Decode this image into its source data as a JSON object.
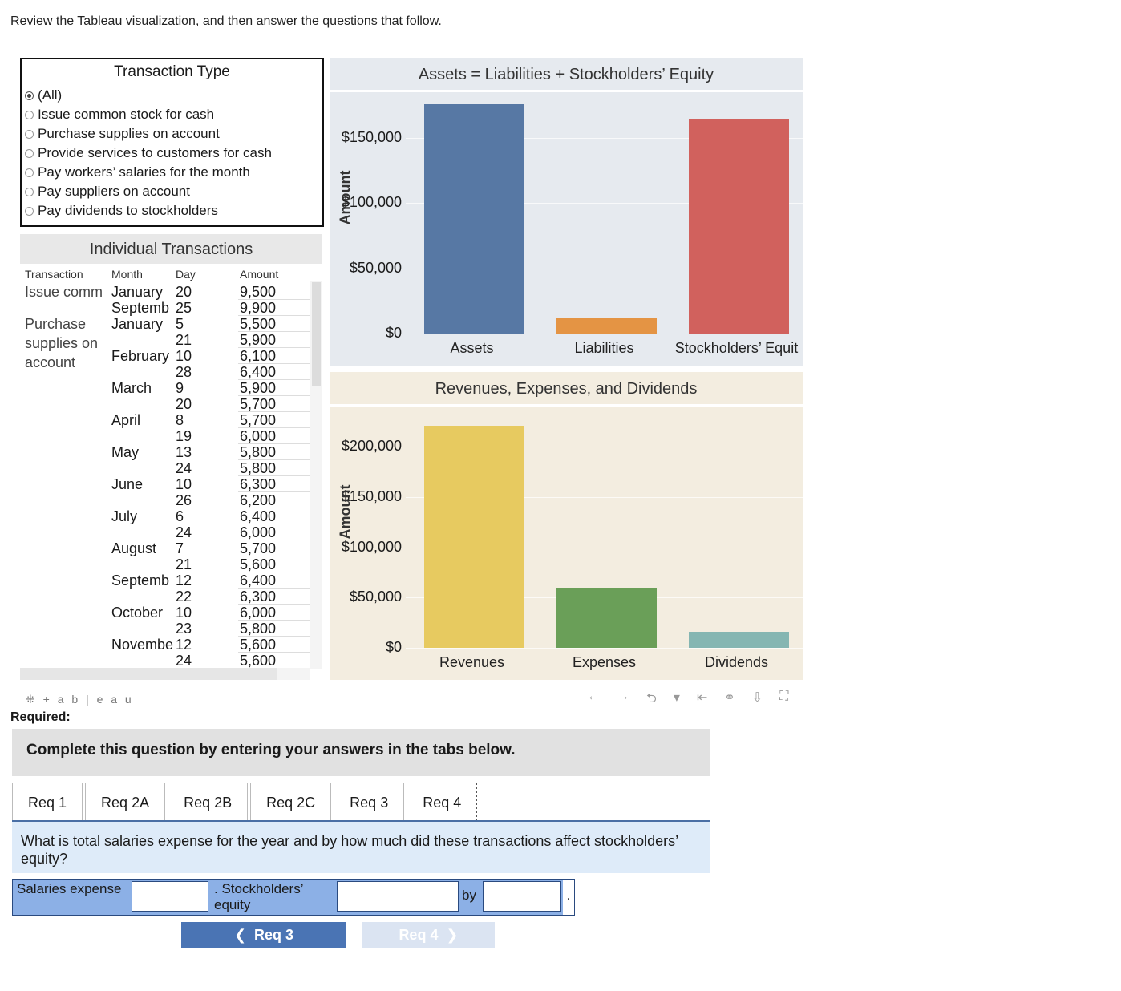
{
  "intro": "Review the Tableau visualization, and then answer the questions that follow.",
  "filter": {
    "title": "Transaction Type",
    "options": [
      {
        "label": "(All)",
        "selected": true
      },
      {
        "label": "Issue common stock for cash",
        "selected": false
      },
      {
        "label": "Purchase supplies on account",
        "selected": false
      },
      {
        "label": "Provide services to customers for cash",
        "selected": false
      },
      {
        "label": "Pay workers’ salaries for the month",
        "selected": false
      },
      {
        "label": "Pay suppliers on account",
        "selected": false
      },
      {
        "label": "Pay dividends to stockholders",
        "selected": false
      }
    ]
  },
  "transactions": {
    "title": "Individual Transactions",
    "columns": [
      "Transaction",
      "Month",
      "Day",
      "Amount"
    ],
    "group_labels": [
      {
        "text": "Issue comm",
        "row": 0
      },
      {
        "text": "Purchase",
        "row": 2
      },
      {
        "text": "supplies on",
        "row": 3.2
      },
      {
        "text": "account",
        "row": 4.4
      }
    ],
    "month_labels": [
      {
        "text": "January",
        "row": 0
      },
      {
        "text": "Septemb",
        "row": 1
      },
      {
        "text": "January",
        "row": 2
      },
      {
        "text": "February",
        "row": 4
      },
      {
        "text": "March",
        "row": 6
      },
      {
        "text": "April",
        "row": 8
      },
      {
        "text": "May",
        "row": 10
      },
      {
        "text": "June",
        "row": 12
      },
      {
        "text": "July",
        "row": 14
      },
      {
        "text": "August",
        "row": 16
      },
      {
        "text": "Septemb",
        "row": 18
      },
      {
        "text": "October",
        "row": 20
      },
      {
        "text": "Novembe",
        "row": 22
      }
    ],
    "rows": [
      {
        "day": "20",
        "amount": "9,500"
      },
      {
        "day": "25",
        "amount": "9,900"
      },
      {
        "day": "5",
        "amount": "5,500"
      },
      {
        "day": "21",
        "amount": "5,900"
      },
      {
        "day": "10",
        "amount": "6,100"
      },
      {
        "day": "28",
        "amount": "6,400"
      },
      {
        "day": "9",
        "amount": "5,900"
      },
      {
        "day": "20",
        "amount": "5,700"
      },
      {
        "day": "8",
        "amount": "5,700"
      },
      {
        "day": "19",
        "amount": "6,000"
      },
      {
        "day": "13",
        "amount": "5,800"
      },
      {
        "day": "24",
        "amount": "5,800"
      },
      {
        "day": "10",
        "amount": "6,300"
      },
      {
        "day": "26",
        "amount": "6,200"
      },
      {
        "day": "6",
        "amount": "6,400"
      },
      {
        "day": "24",
        "amount": "6,000"
      },
      {
        "day": "7",
        "amount": "5,700"
      },
      {
        "day": "21",
        "amount": "5,600"
      },
      {
        "day": "12",
        "amount": "6,400"
      },
      {
        "day": "22",
        "amount": "6,300"
      },
      {
        "day": "10",
        "amount": "6,000"
      },
      {
        "day": "23",
        "amount": "5,800"
      },
      {
        "day": "12",
        "amount": "5,600"
      },
      {
        "day": "24",
        "amount": "5,600"
      }
    ]
  },
  "chart_data": [
    {
      "type": "bar",
      "title": "Assets = Liabilities + Stockholders’ Equity",
      "ylabel": "Amount",
      "categories": [
        "Assets",
        "Liabilities",
        "Stockholders’ Equit"
      ],
      "values": [
        176000,
        12000,
        164000
      ],
      "colors": [
        "#5778a4",
        "#e49444",
        "#d1615d"
      ],
      "yticks": [
        "$0",
        "$50,000",
        "$100,000",
        "$150,000"
      ],
      "ylim": [
        0,
        185000
      ],
      "background": "#e6eaef"
    },
    {
      "type": "bar",
      "title": "Revenues, Expenses, and Dividends",
      "ylabel": "Amount",
      "categories": [
        "Revenues",
        "Expenses",
        "Dividends"
      ],
      "values": [
        221000,
        60000,
        16000
      ],
      "colors": [
        "#e7ca60",
        "#6a9f58",
        "#85b6b2"
      ],
      "yticks": [
        "$0",
        "$50,000",
        "$100,000",
        "$150,000",
        "$200,000"
      ],
      "ylim": [
        0,
        240000
      ],
      "background": "#f3ede0"
    }
  ],
  "tableau": {
    "logo": "+ a b | e a u",
    "icons": [
      "←",
      "→",
      "⮌",
      "▾",
      "⇤",
      "⚭",
      "⇩",
      "⛶"
    ]
  },
  "required": "Required:",
  "instructions": "Complete this question by entering your answers in the tabs below.",
  "tabs": [
    "Req 1",
    "Req 2A",
    "Req 2B",
    "Req 2C",
    "Req 3",
    "Req 4"
  ],
  "question": "What is total salaries expense for the year and by how much did these transactions affect stockholders’ equity?",
  "answer": {
    "salaries_label": "Salaries expense",
    "equity_label": ". Stockholders’ equity",
    "by_label": "by",
    "period": ".",
    "salaries_value": "",
    "equity_value": "",
    "by_value": ""
  },
  "nav": {
    "prev": "Req 3",
    "next": "Req 4"
  }
}
